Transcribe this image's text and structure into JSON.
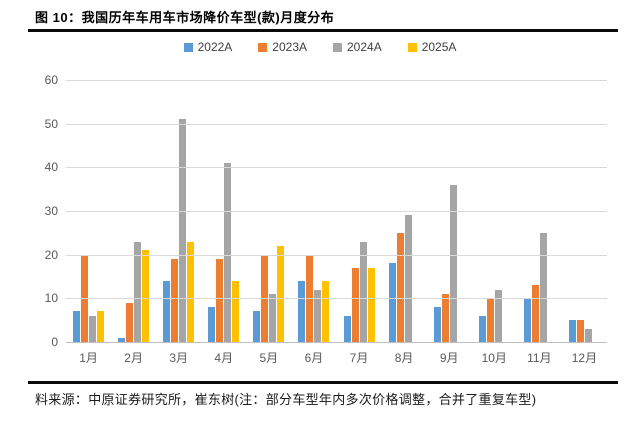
{
  "title": "图 10：我国历年车用车市场降价车型(款)月度分布",
  "footer": {
    "source_note": "料来源：中原证券研究所，崔东树(注：部分车型年内多次价格调整，合并了重复车型)"
  },
  "chart_data": {
    "type": "bar",
    "title": "我国历年车用车市场降价车型(款)月度分布",
    "categories": [
      "1月",
      "2月",
      "3月",
      "4月",
      "5月",
      "6月",
      "7月",
      "8月",
      "9月",
      "10月",
      "11月",
      "12月"
    ],
    "series": [
      {
        "name": "2022A",
        "color": "#5B9BD5",
        "values": [
          7,
          1,
          14,
          8,
          7,
          14,
          6,
          18,
          8,
          6,
          10,
          5
        ]
      },
      {
        "name": "2023A",
        "color": "#ED7D31",
        "values": [
          20,
          9,
          19,
          19,
          20,
          20,
          17,
          25,
          11,
          10,
          13,
          5
        ]
      },
      {
        "name": "2024A",
        "color": "#A5A5A5",
        "values": [
          6,
          23,
          51,
          41,
          11,
          12,
          23,
          29,
          36,
          12,
          25,
          3
        ]
      },
      {
        "name": "2025A",
        "color": "#FFC000",
        "values": [
          7,
          21,
          23,
          14,
          22,
          14,
          17,
          null,
          null,
          null,
          null,
          null
        ]
      }
    ],
    "xlabel": "",
    "ylabel": "",
    "ylim": [
      0,
      60
    ],
    "yticks": [
      0,
      10,
      20,
      30,
      40,
      50,
      60
    ],
    "grid": true,
    "legend_position": "top",
    "gridline_color": "#D9D9D9",
    "axis_label_color": "#595959"
  }
}
